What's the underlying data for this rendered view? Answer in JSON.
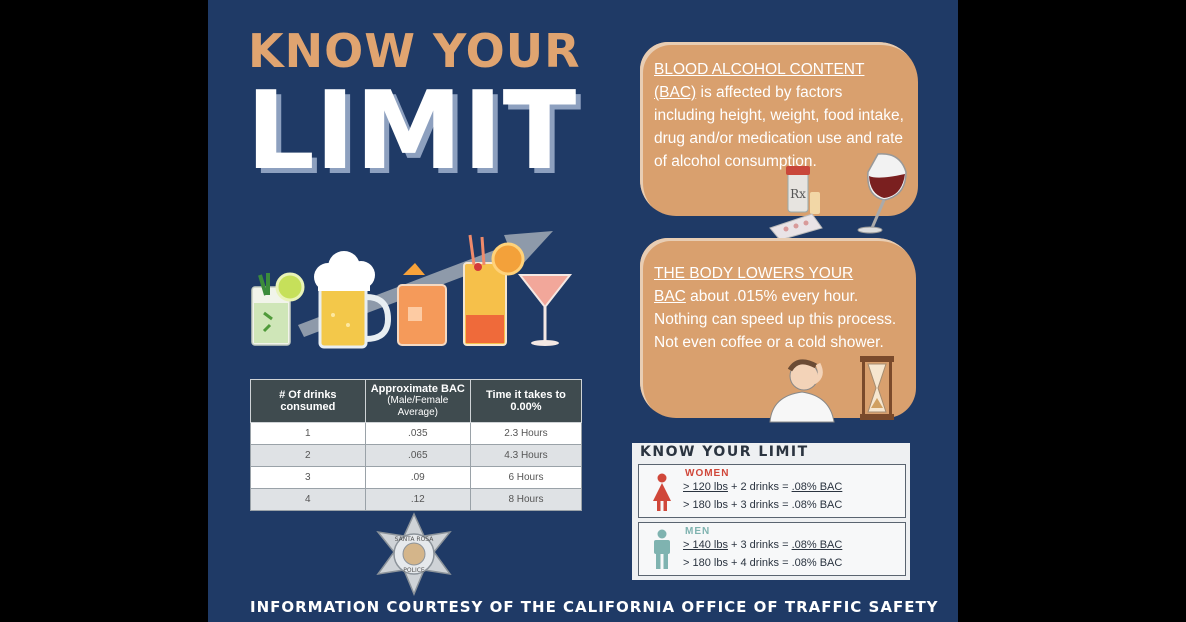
{
  "title": {
    "line1": "KNOW YOUR",
    "line2": "LIMIT"
  },
  "bac_blob": {
    "heading": "BLOOD ALCOHOL CONTENT",
    "bac_abbr": "(BAC)",
    "text_rest": " is affected by factors including height, weight, food intake, drug and/or medication use and rate of alcohol consumption.",
    "rx_label": "Rx"
  },
  "body_blob": {
    "heading": "THE BODY LOWERS YOUR",
    "bac_abbr": "BAC",
    "text_rest": " about .015% every hour. Nothing can speed up this process. Not even coffee or a cold shower."
  },
  "table": {
    "headers": [
      {
        "main": "# Of drinks consumed",
        "sub": ""
      },
      {
        "main": "Approximate BAC",
        "sub": "(Male/Female Average)"
      },
      {
        "main": "Time it takes to 0.00%",
        "sub": ""
      }
    ],
    "rows": [
      {
        "drinks": "1",
        "bac": ".035",
        "time": "2.3 Hours"
      },
      {
        "drinks": "2",
        "bac": ".065",
        "time": "4.3 Hours"
      },
      {
        "drinks": "3",
        "bac": ".09",
        "time": "6 Hours"
      },
      {
        "drinks": "4",
        "bac": ".12",
        "time": "8 Hours"
      }
    ]
  },
  "limit_box": {
    "title": "KNOW YOUR LIMIT",
    "women": {
      "label": "WOMEN",
      "lines": [
        {
          "weight": "> 120 lbs",
          "drinks": "2 drinks",
          "bac": ".08% BAC"
        },
        {
          "weight": "> 180 lbs",
          "drinks": "3 drinks",
          "bac": ".08% BAC"
        }
      ]
    },
    "men": {
      "label": "MEN",
      "lines": [
        {
          "weight": "> 140 lbs",
          "drinks": "3 drinks",
          "bac": ".08% BAC"
        },
        {
          "weight": "> 180 lbs",
          "drinks": "4 drinks",
          "bac": ".08% BAC"
        }
      ]
    }
  },
  "badge": {
    "top": "SANTA ROSA",
    "bottom": "POLICE"
  },
  "footer": "INFORMATION COURTESY OF THE CALIFORNIA OFFICE OF TRAFFIC SAFETY",
  "colors": {
    "navy": "#1f3a66",
    "tan": "#d9a06e",
    "orange_title": "#e0a470",
    "women": "#d0473a",
    "men": "#7fb3b0"
  }
}
